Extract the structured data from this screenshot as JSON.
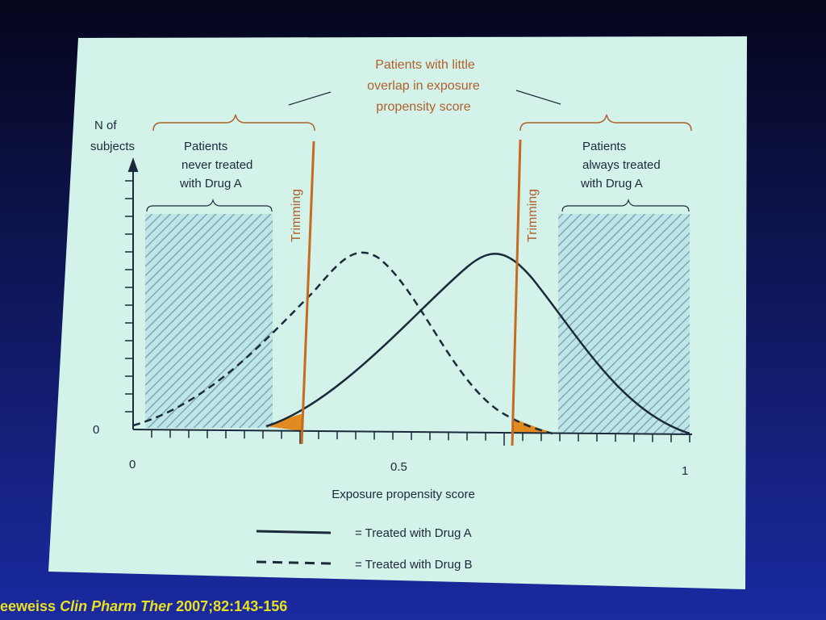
{
  "annotation": [
    "Patients with little",
    "overlap in exposure",
    "propensity score"
  ],
  "y_axis": {
    "label": [
      "N of",
      "subjects"
    ],
    "zero": "0"
  },
  "left_group": [
    "Patients",
    "never treated",
    "with Drug A"
  ],
  "right_group": [
    "Patients",
    "always treated",
    "with Drug A"
  ],
  "trimming": [
    "Trimming",
    "Trimming"
  ],
  "x_axis": {
    "ticks": [
      "0",
      "0.5",
      "1"
    ],
    "label": "Exposure propensity score"
  },
  "legend": [
    "= Treated with Drug A",
    "= Treated with Drug B"
  ],
  "citation": {
    "author": "eeweiss",
    "journal": "Clin Pharm Ther",
    "ref": "2007;82:143-156"
  }
}
